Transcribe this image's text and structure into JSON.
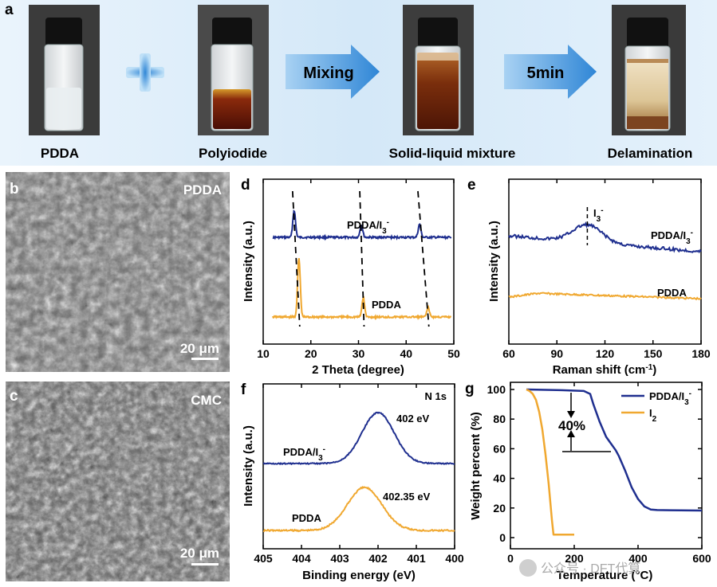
{
  "panel_a": {
    "label": "a",
    "vials": [
      "PDDA",
      "Polyiodide",
      "Solid-liquid mixture",
      "Delamination"
    ],
    "arrows": [
      "Mixing",
      "5min"
    ]
  },
  "panel_b": {
    "label": "b",
    "material": "PDDA",
    "scale": "20 μm"
  },
  "panel_c": {
    "label": "c",
    "material": "CMC",
    "scale": "20 μm"
  },
  "watermark": "公众号 · DFT代算",
  "colors": {
    "blue": "#1f2f8f",
    "orange": "#f0a830",
    "arrow": "#3a8ed8"
  },
  "chart_data": [
    {
      "panel": "d",
      "type": "line",
      "xlabel": "2 Theta (degree)",
      "ylabel": "Intensity (a.u.)",
      "xlim": [
        10,
        50
      ],
      "xticks": [
        10,
        20,
        30,
        40,
        50
      ],
      "series": [
        {
          "name": "PDDA/I3-",
          "color": "#1f2f8f",
          "peaks": [
            {
              "x": 16.5,
              "h": 34
            },
            {
              "x": 30.6,
              "h": 16
            },
            {
              "x": 42.8,
              "h": 16
            }
          ],
          "base_y": 298
        },
        {
          "name": "PDDA",
          "color": "#f0a830",
          "peaks": [
            {
              "x": 17.5,
              "h": 74
            },
            {
              "x": 31.0,
              "h": 24
            },
            {
              "x": 44.6,
              "h": 12
            }
          ],
          "base_y": 398
        }
      ]
    },
    {
      "panel": "e",
      "type": "line",
      "xlabel": "Raman shift (cm-1)",
      "ylabel": "Intensity (a.u.)",
      "xlim": [
        60,
        180
      ],
      "xticks": [
        60,
        90,
        120,
        150,
        180
      ],
      "annotation": "I3-",
      "series": [
        {
          "name": "PDDA/I3-",
          "color": "#1f2f8f",
          "peak_x": 109
        },
        {
          "name": "PDDA",
          "color": "#f0a830"
        }
      ]
    },
    {
      "panel": "f",
      "type": "line",
      "title": "N 1s",
      "xlabel": "Binding energy (eV)",
      "ylabel": "Intensity (a.u.)",
      "xlim": [
        405,
        400
      ],
      "xticks": [
        405,
        404,
        403,
        402,
        401,
        400
      ],
      "series": [
        {
          "name": "PDDA/I3-",
          "color": "#1f2f8f",
          "peak_x": 402.0,
          "peak_label": "402 eV"
        },
        {
          "name": "PDDA",
          "color": "#f0a830",
          "peak_x": 402.35,
          "peak_label": "402.35 eV"
        }
      ]
    },
    {
      "panel": "g",
      "type": "line",
      "xlabel": "Temperature (°C)",
      "ylabel": "Weight percent (%)",
      "xlim": [
        0,
        600
      ],
      "ylim": [
        0,
        100
      ],
      "xticks": [
        0,
        200,
        400,
        600
      ],
      "yticks": [
        0,
        20,
        40,
        60,
        80,
        100
      ],
      "annotation": "40%",
      "series": [
        {
          "name": "PDDA/I3-",
          "color": "#1f2f8f",
          "x": [
            50,
            160,
            230,
            250,
            260,
            280,
            300,
            320,
            330,
            340,
            360,
            380,
            400,
            420,
            440,
            460,
            500,
            600
          ],
          "y": [
            100,
            99.5,
            99,
            97,
            90,
            78,
            68,
            62,
            59,
            55,
            45,
            34,
            26,
            21,
            19,
            18.6,
            18.5,
            18.3
          ]
        },
        {
          "name": "I2",
          "color": "#f0a830",
          "x": [
            50,
            60,
            70,
            80,
            90,
            100,
            110,
            120,
            130,
            135,
            200
          ],
          "y": [
            100,
            99,
            97,
            93,
            85,
            73,
            56,
            36,
            12,
            2,
            2
          ]
        }
      ]
    }
  ]
}
